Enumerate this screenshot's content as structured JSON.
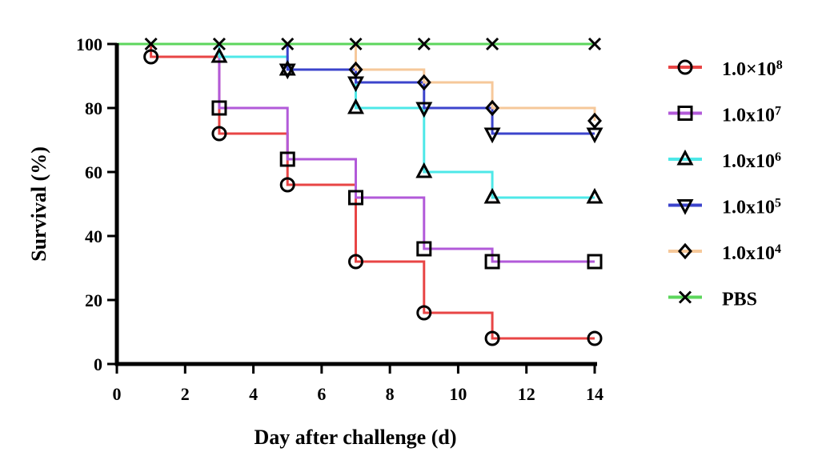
{
  "chart_data": {
    "type": "line",
    "step": true,
    "xlabel": "Day after challenge (d)",
    "ylabel": "Survival (%)",
    "xlim": [
      0,
      14
    ],
    "ylim": [
      0,
      100
    ],
    "xticks": [
      0,
      2,
      4,
      6,
      8,
      10,
      12,
      14
    ],
    "yticks": [
      0,
      20,
      40,
      60,
      80,
      100
    ],
    "grid": false,
    "legend_position": "right",
    "series": [
      {
        "name": "1.0×10⁸",
        "name_base": "1.0×10",
        "name_exp": "8",
        "color": "#e84545",
        "marker": "circle",
        "x": [
          1,
          3,
          5,
          7,
          9,
          11,
          14
        ],
        "y": [
          96,
          72,
          56,
          32,
          16,
          8,
          8
        ]
      },
      {
        "name": "1.0x10⁷",
        "name_base": "1.0x10",
        "name_exp": "7",
        "color": "#b25ad9",
        "marker": "square",
        "x": [
          3,
          5,
          7,
          9,
          11,
          14
        ],
        "y": [
          80,
          64,
          52,
          36,
          32,
          32
        ]
      },
      {
        "name": "1.0x10⁶",
        "name_base": "1.0x10",
        "name_exp": "6",
        "color": "#4ee8e8",
        "marker": "triangle-up",
        "x": [
          3,
          5,
          7,
          9,
          11,
          14
        ],
        "y": [
          96,
          92,
          80,
          60,
          52,
          52
        ]
      },
      {
        "name": "1.0x10⁵",
        "name_base": "1.0x10",
        "name_exp": "5",
        "color": "#3c44cc",
        "marker": "triangle-down",
        "x": [
          5,
          7,
          9,
          11,
          14
        ],
        "y": [
          92,
          88,
          80,
          72,
          72
        ]
      },
      {
        "name": "1.0x10⁴",
        "name_base": "1.0x10",
        "name_exp": "4",
        "color": "#f6c89a",
        "marker": "diamond",
        "x": [
          7,
          9,
          11,
          14
        ],
        "y": [
          92,
          88,
          80,
          76
        ]
      },
      {
        "name": "PBS",
        "name_base": "PBS",
        "name_exp": "",
        "color": "#5cd65c",
        "marker": "cross",
        "x": [
          1,
          3,
          5,
          7,
          9,
          11,
          14
        ],
        "y": [
          100,
          100,
          100,
          100,
          100,
          100,
          100
        ]
      }
    ]
  }
}
